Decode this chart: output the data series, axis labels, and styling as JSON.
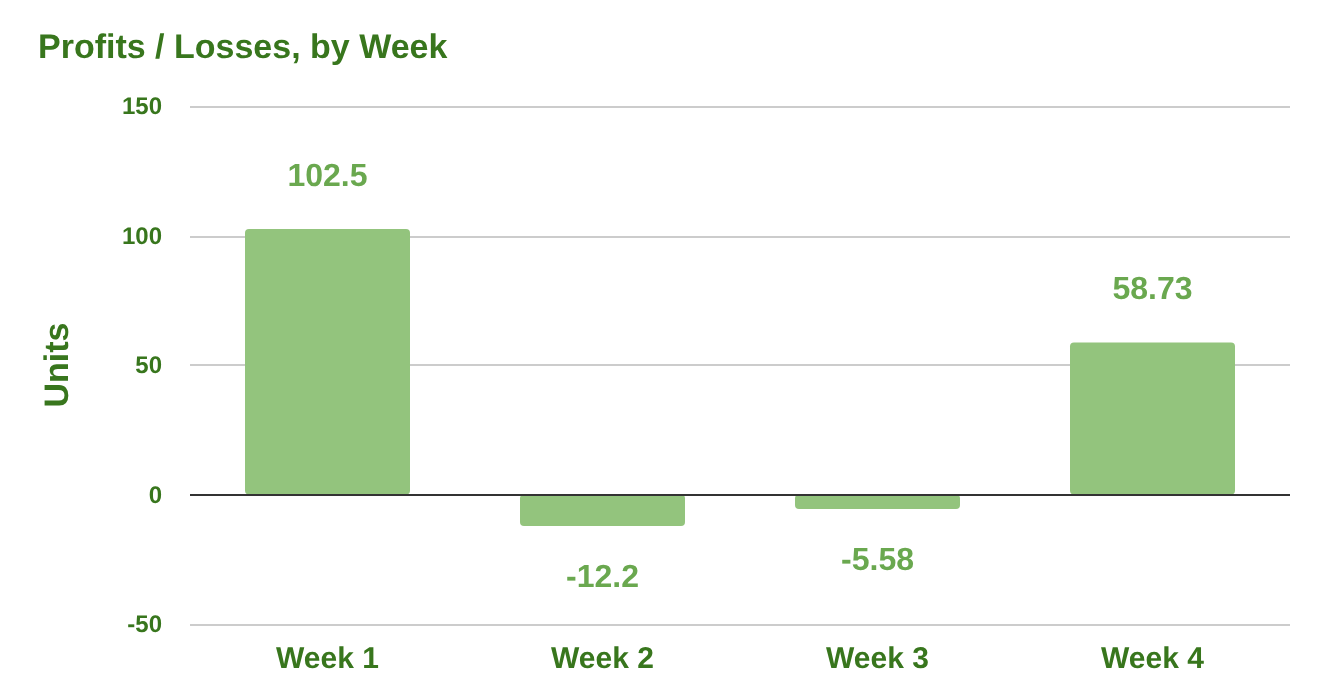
{
  "chart_data": {
    "type": "bar",
    "title": "Profits / Losses, by Week",
    "ylabel": "Units",
    "categories": [
      "Week 1",
      "Week 2",
      "Week 3",
      "Week 4"
    ],
    "values": [
      102.5,
      -12.2,
      -5.58,
      58.73
    ],
    "color": "#93c47d",
    "ylim": [
      -50,
      150
    ],
    "yticks": [
      -50,
      0,
      50,
      100,
      150
    ],
    "grid": "y",
    "data_labels": true
  }
}
